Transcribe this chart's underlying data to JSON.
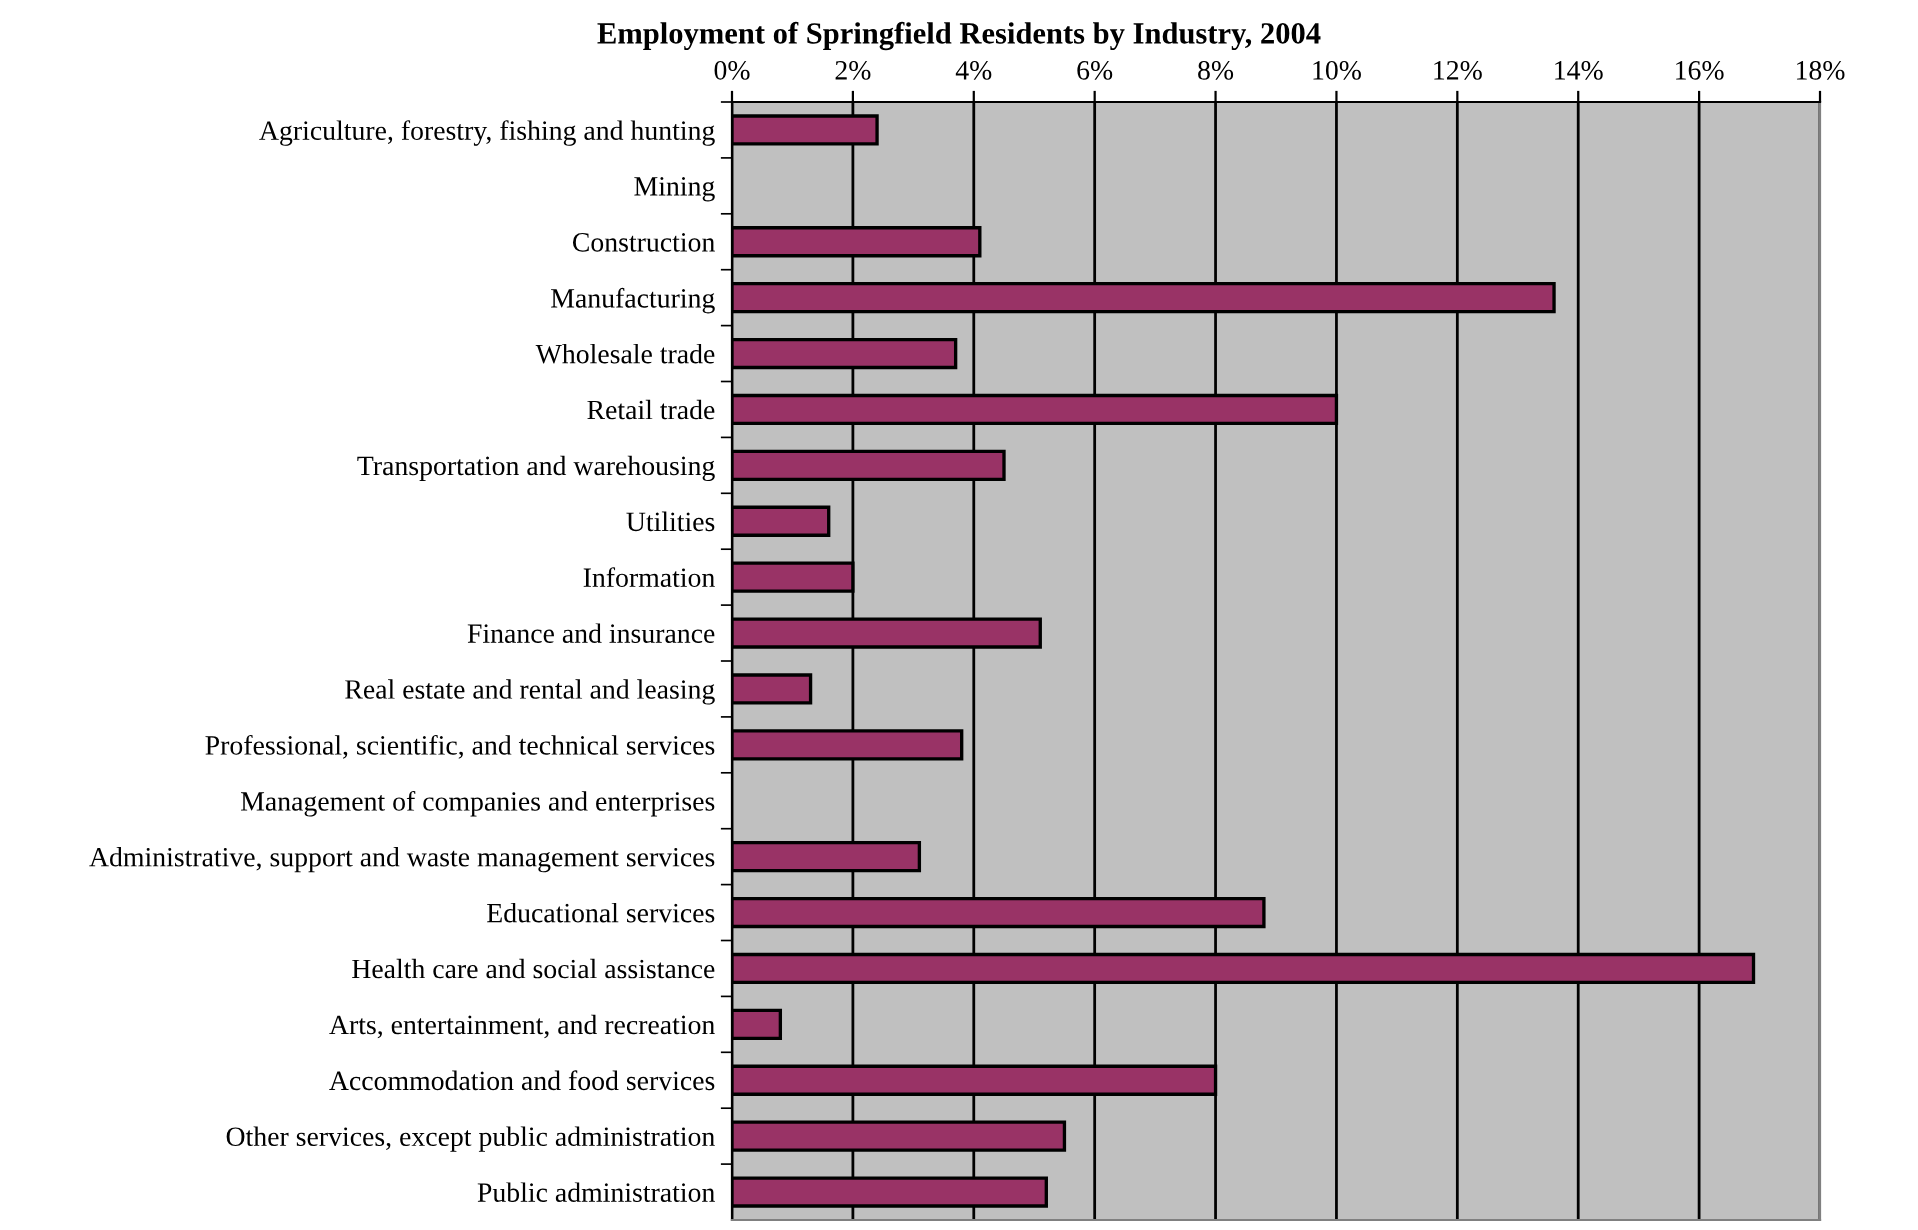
{
  "chart_data": {
    "type": "bar",
    "orientation": "horizontal",
    "title": "Employment of Springfield Residents by Industry, 2004",
    "categories": [
      "Agriculture, forestry, fishing and hunting",
      "Mining",
      "Construction",
      "Manufacturing",
      "Wholesale trade",
      "Retail trade",
      "Transportation and warehousing",
      "Utilities",
      "Information",
      "Finance and insurance",
      "Real estate and rental and leasing",
      "Professional, scientific, and technical services",
      "Management of companies and enterprises",
      "Administrative, support and waste management services",
      "Educational services",
      "Health care and social assistance",
      "Arts, entertainment, and recreation",
      "Accommodation and food services",
      "Other services, except public administration",
      "Public administration"
    ],
    "values": [
      2.4,
      0,
      4.1,
      13.6,
      3.7,
      10.0,
      4.5,
      1.6,
      2.0,
      5.1,
      1.3,
      3.8,
      0,
      3.1,
      8.8,
      16.9,
      0.8,
      8.0,
      5.5,
      5.2
    ],
    "color": "#993366",
    "xlim": [
      0,
      18
    ],
    "xticks": [
      {
        "value": 0,
        "label": "0%"
      },
      {
        "value": 2,
        "label": "2%"
      },
      {
        "value": 4,
        "label": "4%"
      },
      {
        "value": 6,
        "label": "6%"
      },
      {
        "value": 8,
        "label": "8%"
      },
      {
        "value": 10,
        "label": "10%"
      },
      {
        "value": 12,
        "label": "12%"
      },
      {
        "value": 14,
        "label": "14%"
      },
      {
        "value": 16,
        "label": "16%"
      },
      {
        "value": 18,
        "label": "18%"
      }
    ],
    "grid": "x"
  }
}
